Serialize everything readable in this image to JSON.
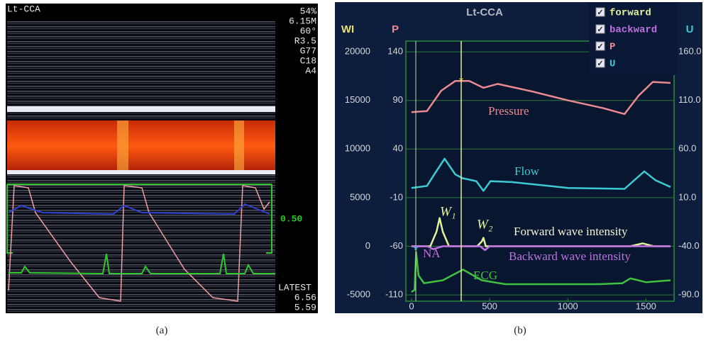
{
  "panel_a": {
    "title": "Lt-CCA",
    "settings": [
      "54%",
      "6.15M",
      "60°",
      "R3.5",
      "G77",
      "C18",
      "A4"
    ],
    "scale": "0.50",
    "footer": [
      "LATEST",
      "6.56",
      "5.59"
    ]
  },
  "chart_data": {
    "type": "line",
    "title": "Lt-CCA",
    "y_label": "WI",
    "y2_label": "P",
    "y3_label": "U",
    "xlim": [
      -36,
      1680
    ],
    "xticks": [
      0,
      500,
      1000,
      1500
    ],
    "ylim": [
      -5650,
      21100
    ],
    "yticks": [
      -5000,
      0,
      5000,
      10000,
      15000,
      20000
    ],
    "y2lim": [
      -116.5,
      151
    ],
    "y2ticks": [
      -110,
      -60,
      -10,
      40,
      90,
      140
    ],
    "y3lim": [
      -96.5,
      171
    ],
    "y3ticks": [
      {
        "value": -90,
        "label": "-90.0"
      },
      {
        "value": -40,
        "label": "-40.0"
      },
      {
        "value": 10,
        "label": "10.0"
      },
      {
        "value": 60,
        "label": "60.0"
      },
      {
        "value": 110,
        "label": "110.0"
      },
      {
        "value": 160,
        "label": "160.0"
      }
    ],
    "grid": true,
    "series": [
      {
        "name": "forward",
        "color": "#e4f29a",
        "x": [
          0,
          120,
          160,
          180,
          200,
          240,
          420,
          450,
          460,
          475,
          1400,
          1480,
          1550,
          1657
        ],
        "values": [
          0,
          0,
          1500,
          2900,
          1500,
          0,
          0,
          500,
          870,
          0,
          0,
          300,
          0,
          0
        ]
      },
      {
        "name": "backward",
        "color": "#c070e0",
        "x": [
          0,
          100,
          140,
          200,
          440,
          470,
          500,
          1657
        ],
        "values": [
          0,
          0,
          -300,
          0,
          0,
          -400,
          0,
          0
        ]
      },
      {
        "name": "P",
        "color": "#ec8a92",
        "axis": "y2",
        "x": [
          0,
          99,
          190,
          280,
          370,
          460,
          551,
          777,
          1002,
          1228,
          1363,
          1454,
          1544,
          1657
        ],
        "values": [
          78,
          79,
          100,
          110,
          110,
          103,
          107,
          99,
          90,
          82,
          76,
          95,
          109,
          108
        ]
      },
      {
        "name": "U",
        "color": "#3ccad4",
        "axis": "y3",
        "x": [
          0,
          99,
          150,
          212,
          280,
          325,
          415,
          460,
          505,
          640,
          1002,
          1363,
          1490,
          1560,
          1657
        ],
        "values": [
          20,
          22,
          35,
          50,
          34,
          30,
          27,
          17,
          27,
          26,
          20,
          19,
          37,
          28,
          21
        ]
      }
    ],
    "ecg": {
      "color": "#3fc23f",
      "x": [
        0,
        20,
        30,
        45,
        80,
        200,
        330,
        450,
        600,
        1200,
        1350,
        1400,
        1500,
        1657
      ],
      "values": [
        -4700,
        -4500,
        -600,
        -3000,
        -3800,
        -3500,
        -2400,
        -3500,
        -3900,
        -3900,
        -3800,
        -3300,
        -3700,
        -3500
      ]
    },
    "annotations": [
      "Pressure",
      "Flow",
      "W₁",
      "W₂",
      "Forward wave intensity",
      "Backward wave intensity",
      "NA",
      "ECG"
    ]
  },
  "captions": [
    "(a)",
    "(b)"
  ]
}
